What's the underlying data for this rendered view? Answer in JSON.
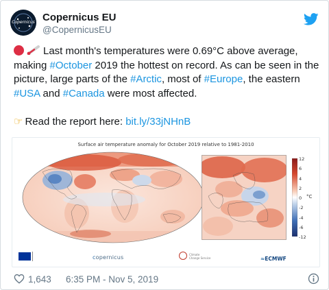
{
  "account": {
    "name": "Copernicus EU",
    "handle": "@CopernicusEU",
    "avatar_text": "Copernicus"
  },
  "tweet": {
    "line1_text": "Last month's temperatures were 0.69°C above average,",
    "line2_pre": "making ",
    "line2_tag": "#October",
    "line2_post": " 2019 the hottest on record. As can be seen in the",
    "line3_pre": "picture, large parts of the ",
    "line3_tag1": "#Arctic",
    "line3_mid": ", most of ",
    "line3_tag2": "#Europe",
    "line3_post": ", the eastern",
    "line4_tag1": "#USA",
    "line4_mid": " and ",
    "line4_tag2": "#Canada",
    "line4_post": " were most affected.",
    "line5_text": "Read the report here: ",
    "line5_link": "bit.ly/33jNHnB"
  },
  "figure": {
    "title": "Surface air temperature anomaly for October 2019 relative to 1981-2010",
    "colorbar_ticks": [
      "12",
      "6",
      "4",
      "2",
      "0",
      "-2",
      "-4",
      "-6",
      "-12"
    ],
    "colorbar_unit": "°C",
    "logos": {
      "copernicus": "opernicus",
      "c3s_line1": "Climate",
      "c3s_line2": "Change Service",
      "ecmwf": "ECMWF"
    }
  },
  "footer": {
    "likes": "1,643",
    "timestamp": "6:35 PM - Nov 5, 2019"
  },
  "icons": {
    "bird": "twitter-bird-icon",
    "heart": "heart-icon",
    "info": "info-icon",
    "red_circle": "red-circle-icon",
    "thermometer": "thermometer-icon",
    "pointing_hand": "pointing-hand-icon"
  },
  "colors": {
    "link": "#1b95e0",
    "secondary_text": "#657786",
    "twitter_blue": "#1da1f2",
    "red_dot": "#dd2e44"
  }
}
